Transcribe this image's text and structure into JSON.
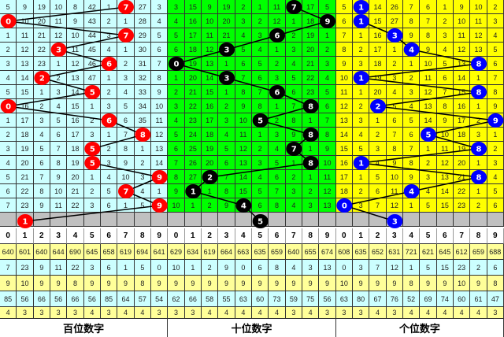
{
  "header_digits": [
    "0",
    "1",
    "2",
    "3",
    "4",
    "5",
    "6",
    "7",
    "8",
    "9"
  ],
  "panels": [
    {
      "label": "百位数字",
      "bg_color": "#ccffff",
      "ball_color": "#ff0000",
      "rows": [
        {
          "ball": 7,
          "cells": [
            "5",
            "9",
            "19",
            "10",
            "8",
            "42",
            "1",
            "7",
            "27",
            "3"
          ]
        },
        {
          "ball": 0,
          "cells": [
            "0",
            "10",
            "20",
            "11",
            "9",
            "43",
            "2",
            "1",
            "28",
            "4"
          ]
        },
        {
          "ball": 7,
          "cells": [
            "1",
            "11",
            "21",
            "12",
            "10",
            "44",
            "3",
            "7",
            "29",
            "5"
          ]
        },
        {
          "ball": 3,
          "cells": [
            "2",
            "12",
            "22",
            "3",
            "11",
            "45",
            "4",
            "1",
            "30",
            "6"
          ]
        },
        {
          "ball": 6,
          "cells": [
            "3",
            "13",
            "23",
            "1",
            "12",
            "46",
            "6",
            "2",
            "31",
            "7"
          ]
        },
        {
          "ball": 2,
          "cells": [
            "4",
            "14",
            "2",
            "2",
            "13",
            "47",
            "1",
            "3",
            "32",
            "8"
          ]
        },
        {
          "ball": 5,
          "cells": [
            "5",
            "15",
            "1",
            "3",
            "14",
            "5",
            "2",
            "4",
            "33",
            "9"
          ]
        },
        {
          "ball": 0,
          "cells": [
            "0",
            "16",
            "2",
            "4",
            "15",
            "1",
            "3",
            "5",
            "34",
            "10"
          ]
        },
        {
          "ball": 6,
          "cells": [
            "1",
            "17",
            "3",
            "5",
            "16",
            "2",
            "6",
            "6",
            "35",
            "11"
          ]
        },
        {
          "ball": 8,
          "cells": [
            "2",
            "18",
            "4",
            "6",
            "17",
            "3",
            "1",
            "7",
            "8",
            "12"
          ]
        },
        {
          "ball": 5,
          "cells": [
            "3",
            "19",
            "5",
            "7",
            "18",
            "5",
            "2",
            "8",
            "1",
            "13"
          ]
        },
        {
          "ball": 5,
          "cells": [
            "4",
            "20",
            "6",
            "8",
            "19",
            "5",
            "3",
            "9",
            "2",
            "14"
          ]
        },
        {
          "ball": 9,
          "cells": [
            "5",
            "21",
            "7",
            "9",
            "20",
            "1",
            "4",
            "10",
            "3",
            "9"
          ]
        },
        {
          "ball": 7,
          "cells": [
            "6",
            "22",
            "8",
            "10",
            "21",
            "2",
            "5",
            "7",
            "4",
            "1"
          ]
        },
        {
          "ball": 9,
          "cells": [
            "7",
            "23",
            "9",
            "11",
            "22",
            "3",
            "6",
            "1",
            "5",
            "9"
          ]
        }
      ],
      "forecast": {
        "ball": 1,
        "digit": "1"
      },
      "stats": [
        [
          "640",
          "601",
          "640",
          "644",
          "690",
          "645",
          "658",
          "619",
          "694",
          "641"
        ],
        [
          "7",
          "23",
          "9",
          "11",
          "22",
          "3",
          "6",
          "1",
          "5",
          "0"
        ],
        [
          "9",
          "10",
          "9",
          "9",
          "8",
          "9",
          "9",
          "9",
          "8",
          "9"
        ],
        [
          "85",
          "56",
          "66",
          "56",
          "66",
          "56",
          "85",
          "64",
          "57",
          "54"
        ],
        [
          "4",
          "3",
          "3",
          "3",
          "3",
          "4",
          "3",
          "4",
          "4",
          "3"
        ]
      ]
    },
    {
      "label": "十位数字",
      "bg_color": "#00ff00",
      "ball_color": "#000000",
      "rows": [
        {
          "ball": 7,
          "cells": [
            "3",
            "15",
            "9",
            "19",
            "2",
            "1",
            "11",
            "7",
            "17",
            "5"
          ]
        },
        {
          "ball": 9,
          "cells": [
            "4",
            "16",
            "10",
            "20",
            "3",
            "2",
            "12",
            "1",
            "18",
            "9"
          ]
        },
        {
          "ball": 6,
          "cells": [
            "5",
            "17",
            "11",
            "21",
            "4",
            "3",
            "6",
            "2",
            "19",
            "1"
          ]
        },
        {
          "ball": 3,
          "cells": [
            "6",
            "18",
            "12",
            "3",
            "5",
            "4",
            "1",
            "3",
            "20",
            "2"
          ]
        },
        {
          "ball": 0,
          "cells": [
            "0",
            "19",
            "13",
            "1",
            "6",
            "5",
            "2",
            "4",
            "21",
            "3"
          ]
        },
        {
          "ball": 3,
          "cells": [
            "1",
            "20",
            "14",
            "3",
            "7",
            "6",
            "3",
            "5",
            "22",
            "4"
          ]
        },
        {
          "ball": 6,
          "cells": [
            "2",
            "21",
            "15",
            "1",
            "8",
            "7",
            "6",
            "6",
            "23",
            "5"
          ]
        },
        {
          "ball": 8,
          "cells": [
            "3",
            "22",
            "16",
            "2",
            "9",
            "8",
            "1",
            "7",
            "8",
            "6"
          ]
        },
        {
          "ball": 5,
          "cells": [
            "4",
            "23",
            "17",
            "3",
            "10",
            "5",
            "2",
            "8",
            "1",
            "7"
          ]
        },
        {
          "ball": 8,
          "cells": [
            "5",
            "24",
            "18",
            "4",
            "11",
            "1",
            "3",
            "9",
            "8",
            "8"
          ]
        },
        {
          "ball": 7,
          "cells": [
            "6",
            "25",
            "19",
            "5",
            "12",
            "2",
            "4",
            "7",
            "1",
            "9"
          ]
        },
        {
          "ball": 8,
          "cells": [
            "7",
            "26",
            "20",
            "6",
            "13",
            "3",
            "5",
            "1",
            "8",
            "10"
          ]
        },
        {
          "ball": 2,
          "cells": [
            "8",
            "27",
            "2",
            "7",
            "14",
            "4",
            "6",
            "2",
            "1",
            "11"
          ]
        },
        {
          "ball": 1,
          "cells": [
            "9",
            "1",
            "1",
            "8",
            "15",
            "5",
            "7",
            "3",
            "2",
            "12"
          ]
        },
        {
          "ball": 4,
          "cells": [
            "10",
            "1",
            "2",
            "9",
            "4",
            "6",
            "8",
            "4",
            "3",
            "13"
          ]
        }
      ],
      "forecast": {
        "ball": 5,
        "digit": "5"
      },
      "stats": [
        [
          "629",
          "634",
          "619",
          "664",
          "663",
          "635",
          "659",
          "640",
          "655",
          "674"
        ],
        [
          "10",
          "1",
          "2",
          "9",
          "0",
          "6",
          "8",
          "4",
          "3",
          "13"
        ],
        [
          "9",
          "9",
          "9",
          "9",
          "9",
          "9",
          "9",
          "9",
          "9",
          "9"
        ],
        [
          "62",
          "66",
          "58",
          "55",
          "63",
          "60",
          "73",
          "59",
          "75",
          "56"
        ],
        [
          "3",
          "3",
          "4",
          "4",
          "4",
          "4",
          "4",
          "3",
          "4",
          "3"
        ]
      ]
    },
    {
      "label": "个位数字",
      "bg_color": "#ffff00",
      "ball_color": "#0000ff",
      "rows": [
        {
          "ball": 1,
          "cells": [
            "5",
            "1",
            "14",
            "26",
            "7",
            "6",
            "1",
            "9",
            "10",
            "2"
          ]
        },
        {
          "ball": 1,
          "cells": [
            "6",
            "1",
            "15",
            "27",
            "8",
            "7",
            "2",
            "10",
            "11",
            "3"
          ]
        },
        {
          "ball": 3,
          "cells": [
            "7",
            "1",
            "16",
            "3",
            "9",
            "8",
            "3",
            "11",
            "12",
            "4"
          ]
        },
        {
          "ball": 4,
          "cells": [
            "8",
            "2",
            "17",
            "1",
            "4",
            "9",
            "4",
            "12",
            "13",
            "5"
          ]
        },
        {
          "ball": 8,
          "cells": [
            "9",
            "3",
            "18",
            "2",
            "1",
            "10",
            "5",
            "13",
            "8",
            "6"
          ]
        },
        {
          "ball": 1,
          "cells": [
            "10",
            "1",
            "19",
            "3",
            "2",
            "11",
            "6",
            "14",
            "1",
            "7"
          ]
        },
        {
          "ball": 8,
          "cells": [
            "11",
            "1",
            "20",
            "4",
            "3",
            "12",
            "7",
            "15",
            "8",
            "8"
          ]
        },
        {
          "ball": 2,
          "cells": [
            "12",
            "2",
            "2",
            "5",
            "4",
            "13",
            "8",
            "16",
            "1",
            "9"
          ]
        },
        {
          "ball": 9,
          "cells": [
            "13",
            "3",
            "1",
            "6",
            "5",
            "14",
            "9",
            "17",
            "2",
            "9"
          ]
        },
        {
          "ball": 5,
          "cells": [
            "14",
            "4",
            "2",
            "7",
            "6",
            "5",
            "10",
            "18",
            "3",
            "1"
          ]
        },
        {
          "ball": 8,
          "cells": [
            "15",
            "5",
            "3",
            "8",
            "7",
            "1",
            "11",
            "19",
            "8",
            "2"
          ]
        },
        {
          "ball": 1,
          "cells": [
            "16",
            "1",
            "4",
            "9",
            "8",
            "2",
            "12",
            "20",
            "1",
            "3"
          ]
        },
        {
          "ball": 8,
          "cells": [
            "17",
            "1",
            "5",
            "10",
            "9",
            "3",
            "13",
            "21",
            "8",
            "4"
          ]
        },
        {
          "ball": 4,
          "cells": [
            "18",
            "2",
            "6",
            "11",
            "4",
            "4",
            "14",
            "22",
            "1",
            "5"
          ]
        },
        {
          "ball": 0,
          "cells": [
            "0",
            "3",
            "7",
            "12",
            "1",
            "5",
            "15",
            "23",
            "2",
            "6"
          ]
        }
      ],
      "forecast": {
        "ball": 3,
        "digit": "3"
      },
      "stats": [
        [
          "608",
          "635",
          "652",
          "631",
          "721",
          "621",
          "645",
          "612",
          "659",
          "688"
        ],
        [
          "0",
          "3",
          "7",
          "12",
          "1",
          "5",
          "15",
          "23",
          "2",
          "6"
        ],
        [
          "10",
          "9",
          "9",
          "9",
          "8",
          "9",
          "9",
          "10",
          "9",
          "8"
        ],
        [
          "63",
          "80",
          "67",
          "76",
          "52",
          "69",
          "74",
          "60",
          "61",
          "47"
        ],
        [
          "3",
          "3",
          "4",
          "3",
          "4",
          "4",
          "4",
          "4",
          "4",
          "3"
        ]
      ]
    }
  ],
  "colors": {
    "stat_yellow": "#ffff99",
    "stat_cyan": "#ccffff",
    "forecast_row": "#c0c0c0",
    "line": "#000000"
  }
}
